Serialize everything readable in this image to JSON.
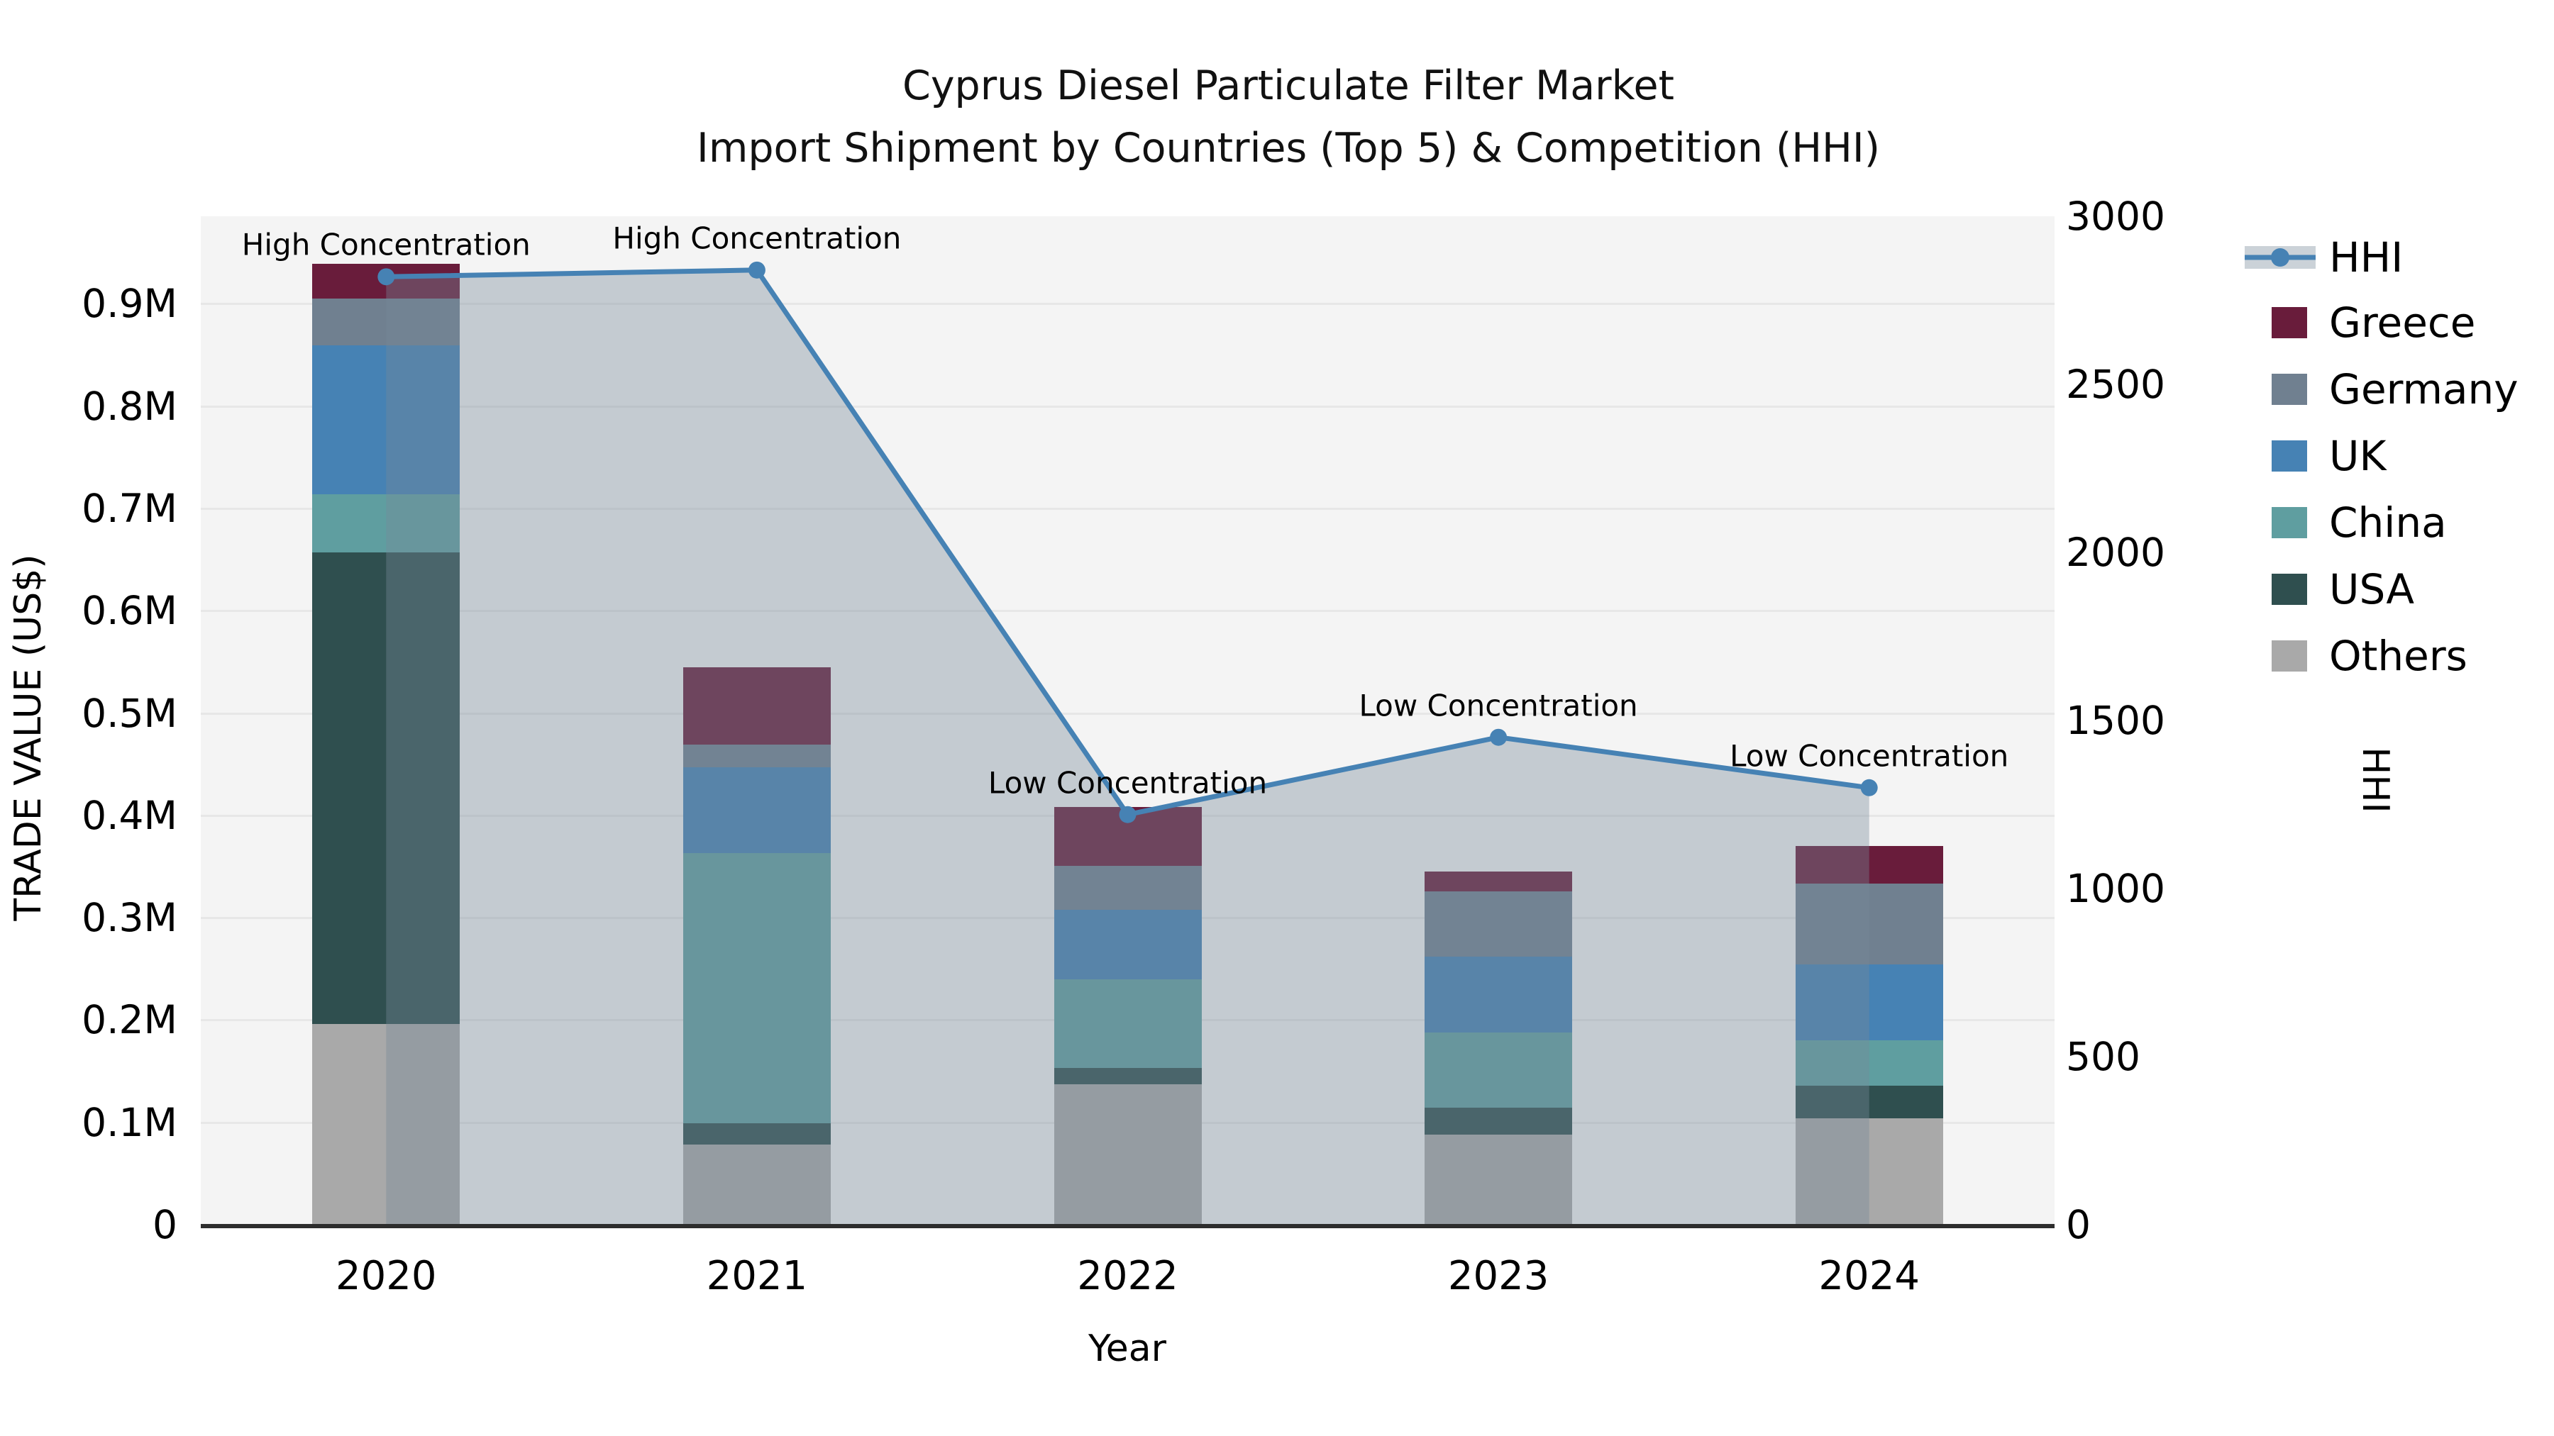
{
  "title": {
    "line1": "Cyprus Diesel Particulate Filter Market",
    "line2": "Import Shipment by Countries (Top 5) & Competition (HHI)"
  },
  "axes": {
    "left": {
      "title": "TRADE VALUE (US$)",
      "ticks": [
        {
          "label": "0",
          "value": 0
        },
        {
          "label": "0.1M",
          "value": 100000
        },
        {
          "label": "0.2M",
          "value": 200000
        },
        {
          "label": "0.3M",
          "value": 300000
        },
        {
          "label": "0.4M",
          "value": 400000
        },
        {
          "label": "0.5M",
          "value": 500000
        },
        {
          "label": "0.6M",
          "value": 600000
        },
        {
          "label": "0.7M",
          "value": 700000
        },
        {
          "label": "0.8M",
          "value": 800000
        },
        {
          "label": "0.9M",
          "value": 900000
        }
      ]
    },
    "right": {
      "title": "HHI",
      "ticks": [
        {
          "label": "0",
          "value": 0
        },
        {
          "label": "500",
          "value": 500
        },
        {
          "label": "1000",
          "value": 1000
        },
        {
          "label": "1500",
          "value": 1500
        },
        {
          "label": "2000",
          "value": 2000
        },
        {
          "label": "2500",
          "value": 2500
        },
        {
          "label": "3000",
          "value": 3000
        }
      ]
    },
    "x": {
      "title": "Year",
      "categories": [
        "2020",
        "2021",
        "2022",
        "2023",
        "2024"
      ]
    }
  },
  "legend": [
    {
      "label": "HHI",
      "type": "line",
      "color": "#4682b4"
    },
    {
      "label": "Greece",
      "type": "patch",
      "color": "#691c3b"
    },
    {
      "label": "Germany",
      "type": "patch",
      "color": "#708090"
    },
    {
      "label": "UK",
      "type": "patch",
      "color": "#4682b4"
    },
    {
      "label": "China",
      "type": "patch",
      "color": "#5f9ea0"
    },
    {
      "label": "USA",
      "type": "patch",
      "color": "#2f4f4f"
    },
    {
      "label": "Others",
      "type": "patch",
      "color": "#a9a9a9"
    }
  ],
  "chart_data": {
    "type": "bar",
    "subtype": "stacked-bar-with-line-overlay",
    "categories": [
      "2020",
      "2021",
      "2022",
      "2023",
      "2024"
    ],
    "bar_series_bottom_to_top": [
      {
        "name": "Others",
        "color": "#a9a9a9",
        "values": [
          196000,
          78000,
          137000,
          88000,
          104000
        ]
      },
      {
        "name": "USA",
        "color": "#2f4f4f",
        "values": [
          461000,
          21000,
          16000,
          26000,
          32000
        ]
      },
      {
        "name": "China",
        "color": "#5f9ea0",
        "values": [
          57000,
          264000,
          87000,
          74000,
          44000
        ]
      },
      {
        "name": "UK",
        "color": "#4682b4",
        "values": [
          145000,
          84000,
          68000,
          74000,
          74000
        ]
      },
      {
        "name": "Germany",
        "color": "#708090",
        "values": [
          46000,
          22000,
          43000,
          64000,
          79000
        ]
      },
      {
        "name": "Greece",
        "color": "#691c3b",
        "values": [
          34000,
          76000,
          57000,
          19000,
          37000
        ]
      }
    ],
    "bar_totals": [
      939000,
      545000,
      408000,
      345000,
      370000
    ],
    "line_series": {
      "name": "HHI",
      "color": "#4682b4",
      "area_fill": "rgba(119,136,153,0.38)",
      "values": [
        2820,
        2840,
        1220,
        1450,
        1300
      ]
    },
    "annotations": [
      {
        "category": "2020",
        "text": "High Concentration"
      },
      {
        "category": "2021",
        "text": "High Concentration"
      },
      {
        "category": "2022",
        "text": "Low Concentration"
      },
      {
        "category": "2023",
        "text": "Low Concentration"
      },
      {
        "category": "2024",
        "text": "Low Concentration"
      }
    ],
    "xlabel": "Year",
    "ylabel_left": "TRADE VALUE (US$)",
    "ylabel_right": "HHI",
    "ylim_left": [
      0,
      985000
    ],
    "ylim_right": [
      0,
      3000
    ],
    "grid": true,
    "legend_position": "right"
  },
  "colors": {
    "plot_background": "#f4f4f4",
    "figure_background": "#ffffff",
    "gridline": "#e7e7e7",
    "axis_line": "#2d2d2d",
    "text": "#000000"
  }
}
